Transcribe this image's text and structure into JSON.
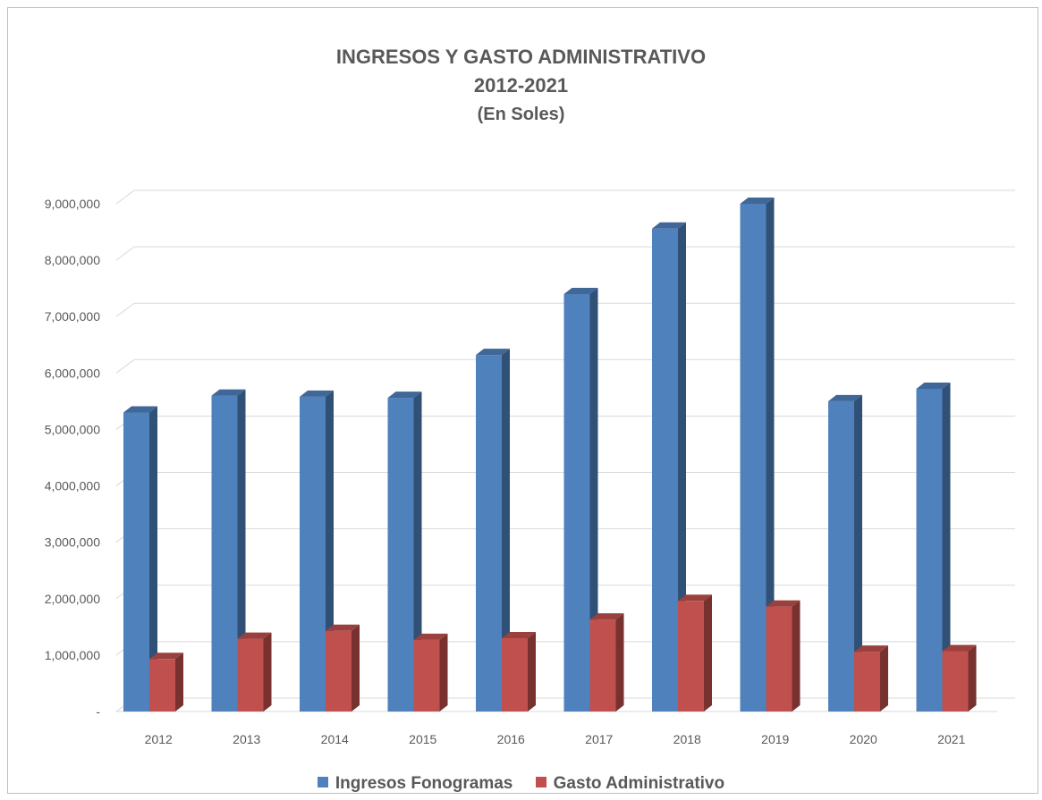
{
  "chart_data": {
    "type": "bar",
    "title": "INGRESOS Y GASTO ADMINISTRATIVO",
    "subtitle": "2012-2021",
    "unit_label": "(En Soles)",
    "categories": [
      "2012",
      "2013",
      "2014",
      "2015",
      "2016",
      "2017",
      "2018",
      "2019",
      "2020",
      "2021"
    ],
    "series": [
      {
        "name": "Ingresos Fonogramas",
        "color": "#4f81bd",
        "values": [
          5300000,
          5600000,
          5580000,
          5560000,
          6320000,
          7400000,
          8560000,
          9000000,
          5500000,
          5720000
        ]
      },
      {
        "name": "Gasto Administrativo",
        "color": "#c0504d",
        "values": [
          930000,
          1290000,
          1430000,
          1270000,
          1300000,
          1630000,
          1960000,
          1860000,
          1060000,
          1070000
        ]
      }
    ],
    "y_ticks": [
      {
        "value": 0,
        "label": "-"
      },
      {
        "value": 1000000,
        "label": "1,000,000"
      },
      {
        "value": 2000000,
        "label": "2,000,000"
      },
      {
        "value": 3000000,
        "label": "3,000,000"
      },
      {
        "value": 4000000,
        "label": "4,000,000"
      },
      {
        "value": 5000000,
        "label": "5,000,000"
      },
      {
        "value": 6000000,
        "label": "6,000,000"
      },
      {
        "value": 7000000,
        "label": "7,000,000"
      },
      {
        "value": 8000000,
        "label": "8,000,000"
      },
      {
        "value": 9000000,
        "label": "9,000,000"
      }
    ],
    "ylim": [
      0,
      9000000
    ],
    "grid": true,
    "legend_position": "bottom",
    "style": "3d-column"
  }
}
